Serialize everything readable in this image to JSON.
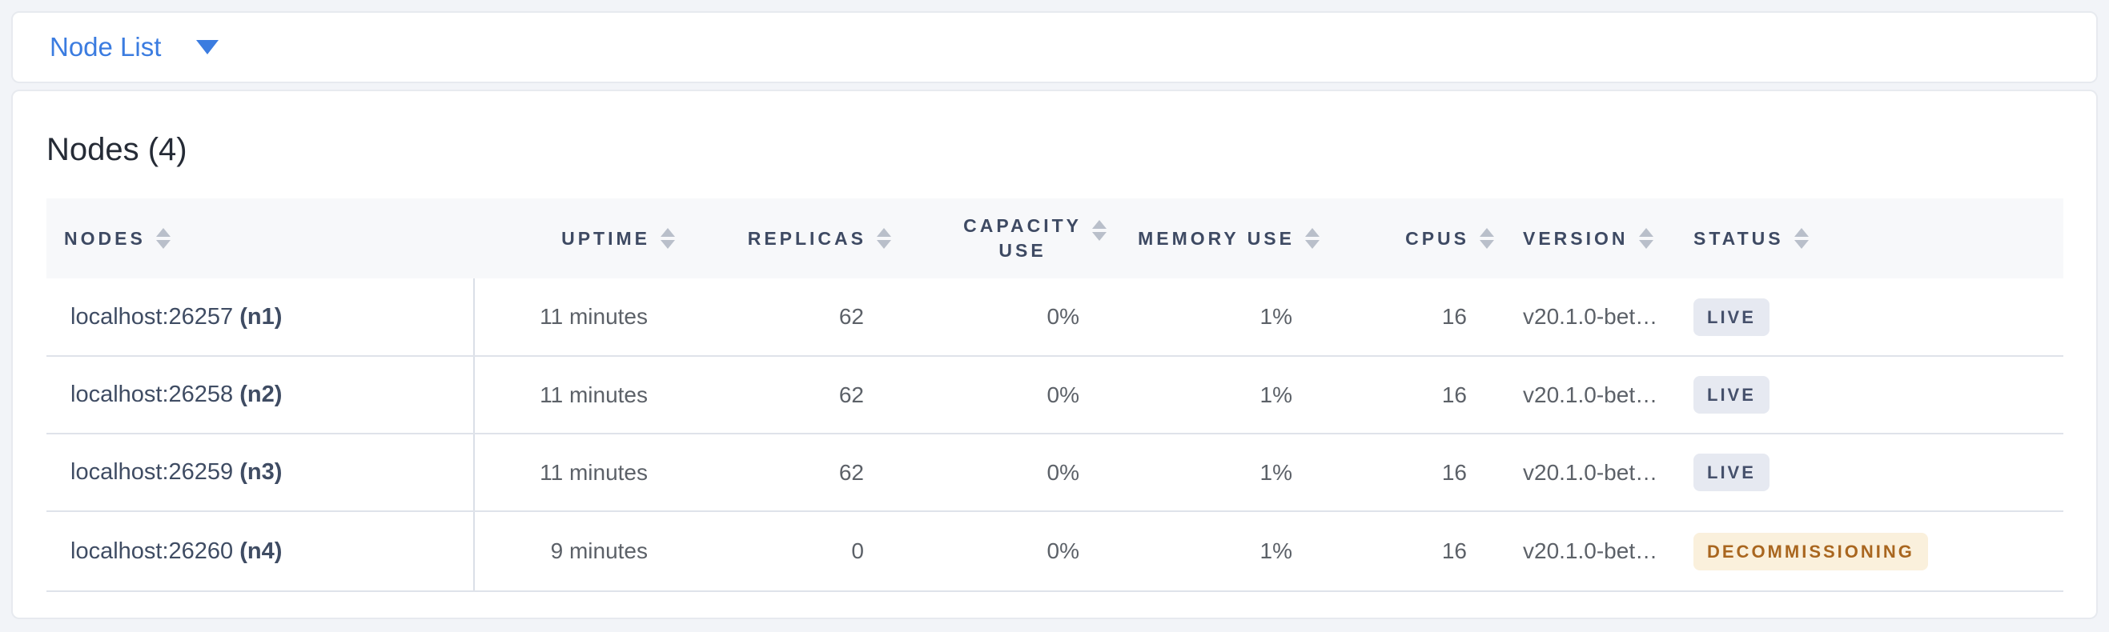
{
  "topbar": {
    "dropdown_label": "Node List"
  },
  "main": {
    "title": "Nodes (4)"
  },
  "table": {
    "columns": [
      {
        "id": "nodes",
        "label": "NODES",
        "align": "left"
      },
      {
        "id": "uptime",
        "label": "UPTIME",
        "align": "right"
      },
      {
        "id": "replicas",
        "label": "REPLICAS",
        "align": "right"
      },
      {
        "id": "capacity_use",
        "label": "CAPACITY USE",
        "label_lines": [
          "CAPACITY",
          "USE"
        ],
        "align": "right"
      },
      {
        "id": "memory_use",
        "label": "MEMORY USE",
        "align": "right"
      },
      {
        "id": "cpus",
        "label": "CPUS",
        "align": "right"
      },
      {
        "id": "version",
        "label": "VERSION",
        "align": "left"
      },
      {
        "id": "status",
        "label": "STATUS",
        "align": "left"
      }
    ],
    "rows": [
      {
        "node_host": "localhost:26257",
        "node_id": "(n1)",
        "uptime": "11 minutes",
        "replicas": "62",
        "capacity_use": "0%",
        "memory_use": "1%",
        "cpus": "16",
        "version": "v20.1.0-bet…",
        "status": {
          "label": "LIVE",
          "type": "live"
        }
      },
      {
        "node_host": "localhost:26258",
        "node_id": "(n2)",
        "uptime": "11 minutes",
        "replicas": "62",
        "capacity_use": "0%",
        "memory_use": "1%",
        "cpus": "16",
        "version": "v20.1.0-bet…",
        "status": {
          "label": "LIVE",
          "type": "live"
        }
      },
      {
        "node_host": "localhost:26259",
        "node_id": "(n3)",
        "uptime": "11 minutes",
        "replicas": "62",
        "capacity_use": "0%",
        "memory_use": "1%",
        "cpus": "16",
        "version": "v20.1.0-bet…",
        "status": {
          "label": "LIVE",
          "type": "live"
        }
      },
      {
        "node_host": "localhost:26260",
        "node_id": "(n4)",
        "uptime": "9 minutes",
        "replicas": "0",
        "capacity_use": "0%",
        "memory_use": "1%",
        "cpus": "16",
        "version": "v20.1.0-bet…",
        "status": {
          "label": "DECOMMISSIONING",
          "type": "decommissioning"
        }
      }
    ]
  },
  "colors": {
    "accent": "#3b7ce0",
    "status_live_bg": "#e6e9f1",
    "status_live_text": "#45506b",
    "status_decommissioning_bg": "#faf0dc",
    "status_decommissioning_text": "#a9661f"
  }
}
